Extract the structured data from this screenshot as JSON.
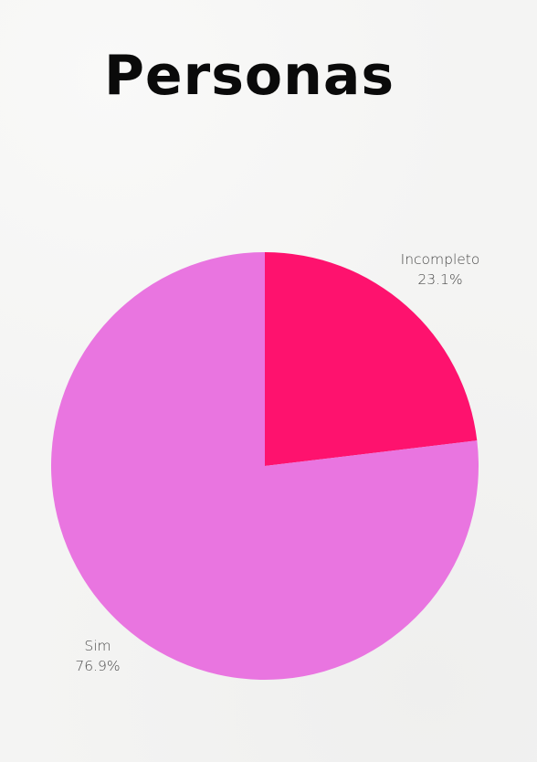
{
  "chart_data": {
    "type": "pie",
    "title": "Personas",
    "slices": [
      {
        "name": "Incompleto",
        "percent_label": "23.1%",
        "value": 23.1,
        "color": "#fe126e"
      },
      {
        "name": "Sim",
        "percent_label": "76.9%",
        "value": 76.9,
        "color": "#e975e0"
      }
    ],
    "start_angle_deg": 0,
    "direction": "clockwise",
    "legend": "none"
  }
}
